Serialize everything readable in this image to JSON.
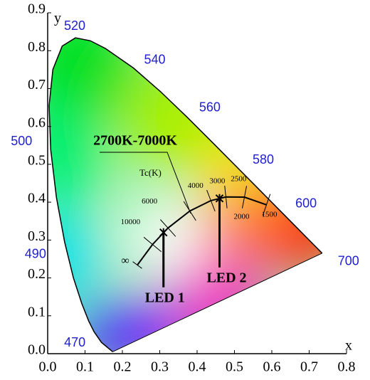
{
  "chart_data": {
    "type": "chromaticity",
    "xlabel": "x",
    "ylabel": "y",
    "xlim": [
      0,
      0.8
    ],
    "ylim": [
      0,
      0.9
    ],
    "xticks": [
      {
        "value": 0,
        "label": "0.0"
      },
      0.1,
      0.2,
      0.3,
      0.4,
      0.5,
      0.6,
      0.7,
      0.8
    ],
    "yticks": [
      {
        "value": 0,
        "label": "0.0"
      },
      0.1,
      0.2,
      0.3,
      0.4,
      0.5,
      0.6,
      0.7,
      0.8,
      0.9
    ],
    "spectral_locus": {
      "x": [
        0.1741,
        0.144,
        0.1241,
        0.1096,
        0.0913,
        0.0687,
        0.0454,
        0.0235,
        0.0082,
        0.0039,
        0.0139,
        0.0389,
        0.0743,
        0.1142,
        0.1547,
        0.2296,
        0.3016,
        0.3731,
        0.4441,
        0.5125,
        0.5752,
        0.627,
        0.6658,
        0.6915,
        0.719,
        0.7347
      ],
      "y": [
        0.005,
        0.0297,
        0.0578,
        0.0868,
        0.1327,
        0.2007,
        0.295,
        0.4127,
        0.5384,
        0.6548,
        0.7502,
        0.812,
        0.8338,
        0.8262,
        0.8059,
        0.7543,
        0.6923,
        0.6245,
        0.5547,
        0.4866,
        0.4242,
        0.3725,
        0.334,
        0.3083,
        0.2809,
        0.2653
      ]
    },
    "wavelength_labels": {
      "wavelengths": [
        470,
        490,
        500,
        520,
        540,
        560,
        580,
        600,
        700
      ],
      "x": [
        0.1241,
        0.0454,
        0.0082,
        0.0743,
        0.2296,
        0.3731,
        0.5125,
        0.627,
        0.7347
      ],
      "y": [
        0.0578,
        0.295,
        0.5384,
        0.8338,
        0.7543,
        0.6245,
        0.4866,
        0.3725,
        0.2653
      ]
    },
    "planckian_locus": {
      "labels": [
        "∞",
        10000,
        6000,
        4000,
        3000,
        2500,
        2000,
        1500
      ],
      "x": [
        0.24,
        0.2807,
        0.3221,
        0.3805,
        0.4369,
        0.477,
        0.5267,
        0.5857
      ],
      "y": [
        0.234,
        0.2884,
        0.3318,
        0.3768,
        0.4041,
        0.4137,
        0.4133,
        0.3931
      ]
    },
    "range_label": "2700K-7000K",
    "cct_axis_label": "Tc(K)",
    "points": {
      "names": [
        "LED 1",
        "LED 2"
      ],
      "x": [
        0.31,
        0.46
      ],
      "y": [
        0.32,
        0.41
      ]
    }
  }
}
